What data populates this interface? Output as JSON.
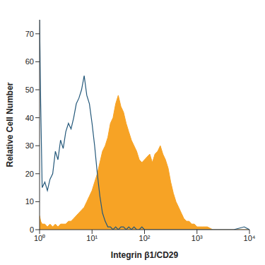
{
  "chart_data": {
    "type": "line",
    "x_label": "Integrin β1/CD29",
    "y_label": "Relative Cell Number",
    "log": "x",
    "grid": false,
    "xlim": [
      1,
      10000
    ],
    "xticks": [
      {
        "value": 1,
        "label": "10⁰"
      },
      {
        "value": 10,
        "label": "10¹"
      },
      {
        "value": 100,
        "label": "10²"
      },
      {
        "value": 1000,
        "label": "10³"
      },
      {
        "value": 10000,
        "label": "10⁴"
      }
    ],
    "ylim": [
      0,
      75
    ],
    "yticks": [
      0,
      10,
      20,
      30,
      40,
      50,
      60,
      70
    ],
    "x": [
      1,
      1.05,
      1.12,
      1.26,
      1.41,
      1.58,
      1.78,
      2,
      2.24,
      2.51,
      2.82,
      3.16,
      3.55,
      3.98,
      4.47,
      5.01,
      5.62,
      6.31,
      7.08,
      7.94,
      8.91,
      10,
      11.2,
      12.6,
      14.1,
      15.8,
      17.8,
      20,
      22.4,
      25.1,
      28.2,
      31.6,
      35.5,
      39.8,
      44.7,
      50.1,
      56.2,
      63.1,
      70.8,
      79.4,
      89.1,
      100,
      112,
      126,
      141,
      158,
      178,
      200,
      224,
      251,
      282,
      316,
      355,
      398,
      447,
      501,
      562,
      631,
      708,
      794,
      891,
      1000,
      1259,
      1585,
      1995,
      2512,
      3162,
      5012,
      7943,
      10000
    ],
    "series": [
      {
        "type": "area",
        "color": "#f7a325",
        "values": [
          5,
          3,
          2,
          2,
          1,
          2,
          1,
          2,
          1,
          2,
          2,
          2,
          3,
          3,
          4,
          5,
          6,
          7,
          8,
          10,
          12,
          14,
          17,
          20,
          24,
          28,
          30,
          33,
          38,
          40,
          45,
          48,
          44,
          42,
          38,
          35,
          32,
          30,
          28,
          25,
          24,
          25,
          26,
          27,
          24,
          27,
          28,
          30,
          27,
          25,
          22,
          17,
          13,
          10,
          8,
          6,
          4,
          3,
          3,
          2,
          2,
          1,
          1,
          1,
          0,
          0,
          0,
          0,
          0,
          0
        ]
      },
      {
        "type": "line",
        "color": "#24587a",
        "values": [
          75,
          45,
          15,
          17,
          14,
          18,
          20,
          28,
          25,
          32,
          29,
          35,
          38,
          36,
          40,
          45,
          47,
          50,
          55,
          48,
          45,
          38,
          30,
          20,
          12,
          6,
          3,
          1,
          1,
          0,
          1,
          0,
          1,
          1,
          0,
          1,
          0,
          1,
          0,
          0,
          1,
          0,
          0,
          0,
          0,
          0,
          0,
          0,
          0,
          0,
          0,
          0,
          0,
          0,
          0,
          0,
          0,
          0,
          0,
          0,
          0,
          0,
          0,
          0,
          0,
          0,
          0,
          0,
          1,
          0
        ]
      }
    ]
  }
}
